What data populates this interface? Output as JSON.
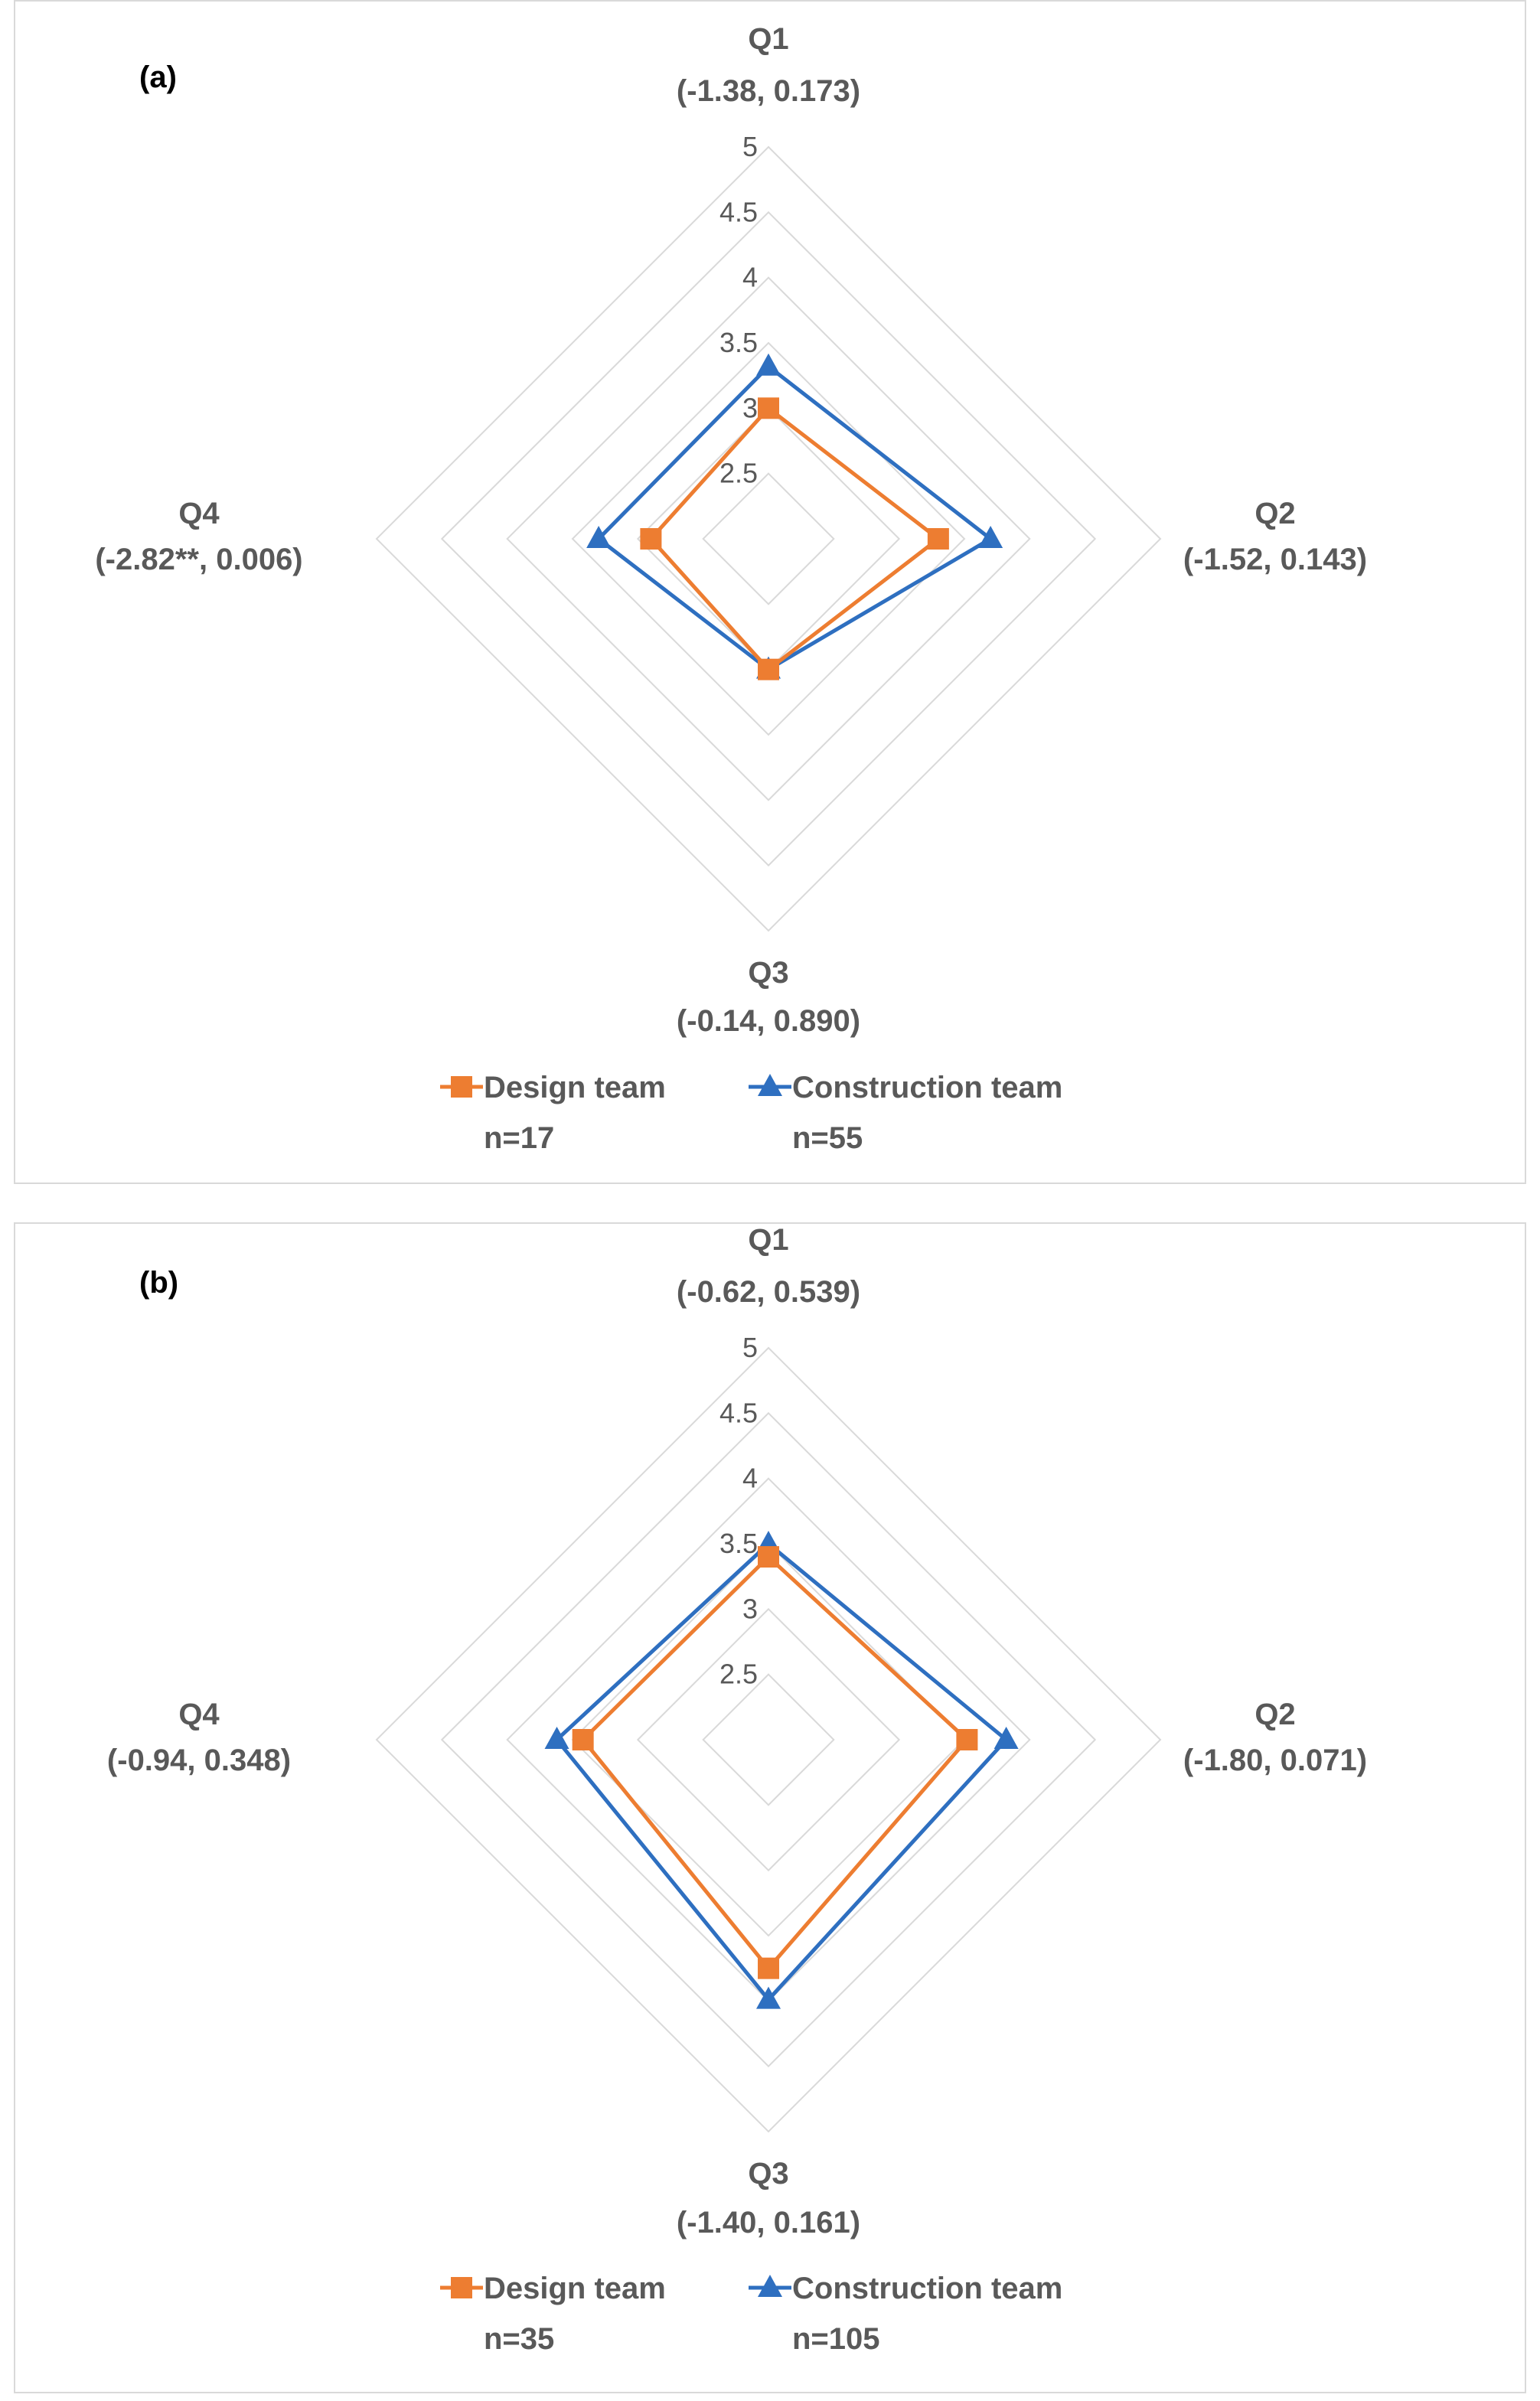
{
  "chart_data": [
    {
      "type": "radar",
      "panel_label": "(a)",
      "axes": [
        "Q1",
        "Q2",
        "Q3",
        "Q4"
      ],
      "axis_stats": [
        "(-1.38, 0.173)",
        "(-1.52, 0.143)",
        "(-0.14, 0.890)",
        "(-2.82**, 0.006)"
      ],
      "r_ticks": [
        "2.5",
        "3",
        "3.5",
        "4",
        "4.5",
        "5"
      ],
      "r_min": 2,
      "r_max": 5,
      "grid": true,
      "series": [
        {
          "name": "Design team",
          "n": "n=17",
          "color": "#ED7D31",
          "marker": "square",
          "values": [
            3.0,
            3.3,
            3.0,
            2.9
          ]
        },
        {
          "name": "Construction team",
          "n": "n=55",
          "color": "#2E6FC0",
          "marker": "triangle",
          "values": [
            3.32,
            3.7,
            3.0,
            3.3
          ]
        }
      ],
      "legend_position": "bottom"
    },
    {
      "type": "radar",
      "panel_label": "(b)",
      "axes": [
        "Q1",
        "Q2",
        "Q3",
        "Q4"
      ],
      "axis_stats": [
        "(-0.62, 0.539)",
        "(-1.80, 0.071)",
        "(-1.40, 0.161)",
        "(-0.94, 0.348)"
      ],
      "r_ticks": [
        "2.5",
        "3",
        "3.5",
        "4",
        "4.5",
        "5"
      ],
      "r_min": 2,
      "r_max": 5,
      "grid": true,
      "series": [
        {
          "name": "Design team",
          "n": "n=35",
          "color": "#ED7D31",
          "marker": "square",
          "values": [
            3.4,
            3.52,
            3.75,
            3.42
          ]
        },
        {
          "name": "Construction team",
          "n": "n=105",
          "color": "#2E6FC0",
          "marker": "triangle",
          "values": [
            3.5,
            3.82,
            3.99,
            3.62
          ]
        }
      ],
      "legend_position": "bottom"
    }
  ]
}
